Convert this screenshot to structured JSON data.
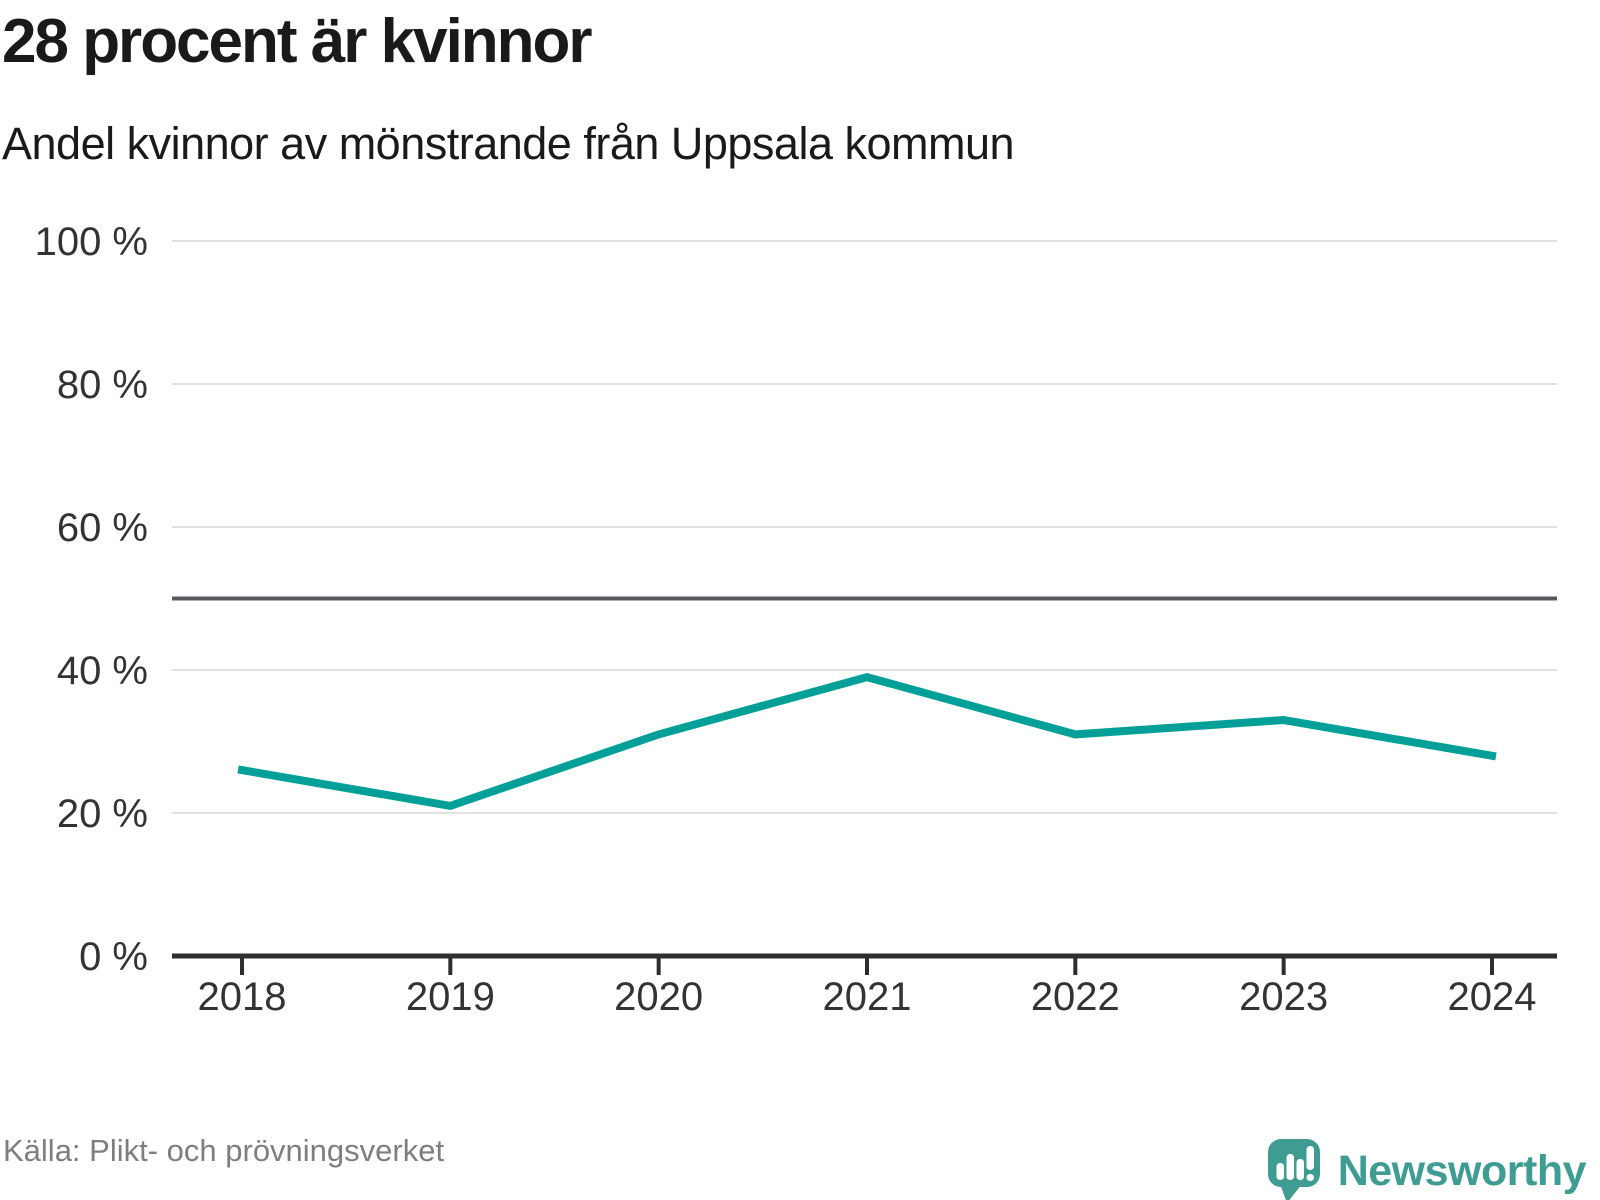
{
  "header": {
    "title": "28 procent är kvinnor",
    "subtitle": "Andel kvinnor av mönstrande från Uppsala kommun"
  },
  "footer": {
    "source": "Källa: Plikt- och prövningsverket",
    "brand": "Newsworthy"
  },
  "colors": {
    "line": "#00A099",
    "grid": "#E1E1E1",
    "axis": "#2E2E2E",
    "reference_line": "#57585C",
    "axis_text": "#333333",
    "title_text": "#1A1A1A",
    "muted_text": "#7D7E80",
    "brand": "#3E9C93"
  },
  "chart_data": {
    "type": "line",
    "title": "28 procent är kvinnor",
    "subtitle": "Andel kvinnor av mönstrande från Uppsala kommun",
    "x": [
      2018,
      2019,
      2020,
      2021,
      2022,
      2023,
      2024
    ],
    "x_labels": [
      "2018",
      "2019",
      "2020",
      "2021",
      "2022",
      "2023",
      "2024"
    ],
    "series": [
      {
        "name": "Andel kvinnor av mönstrande",
        "values": [
          26,
          21,
          31,
          39,
          31,
          33,
          28
        ]
      }
    ],
    "unit": "%",
    "ylim": [
      0,
      100
    ],
    "y_ticks": [
      0,
      20,
      40,
      60,
      80,
      100
    ],
    "y_tick_labels": [
      "0 %",
      "20 %",
      "40 %",
      "60 %",
      "80 %",
      "100 %"
    ],
    "reference_line": 50,
    "grid": true,
    "legend": "none",
    "source": "Källa: Plikt- och prövningsverket"
  }
}
